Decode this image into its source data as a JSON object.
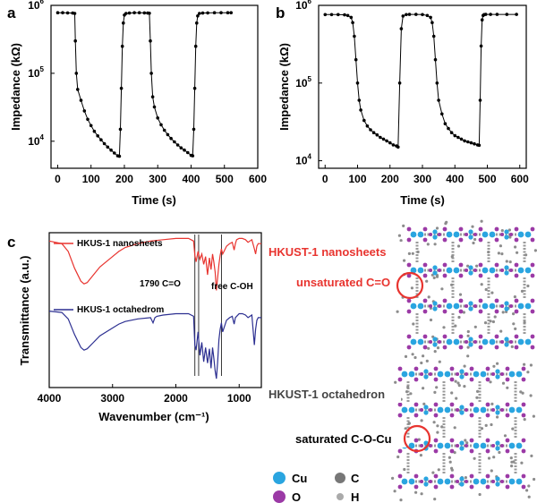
{
  "chart_data": [
    {
      "panel": "a",
      "type": "line",
      "xlabel": "Time (s)",
      "ylabel": "Impedance (kΩ)",
      "xlim": [
        -20,
        600
      ],
      "ylim": [
        4000,
        1000000
      ],
      "yscale": "log",
      "x_ticks": [
        "0",
        "100",
        "200",
        "300",
        "400",
        "500",
        "600"
      ],
      "y_ticks": [
        {
          "base": "10",
          "exp": "4"
        },
        {
          "base": "10",
          "exp": "5"
        },
        {
          "base": "10",
          "exp": "6"
        }
      ],
      "series": [
        {
          "color": "#000000",
          "x": [
            0,
            15,
            30,
            45,
            51,
            53,
            56,
            60,
            70,
            80,
            90,
            100,
            110,
            120,
            130,
            140,
            150,
            160,
            170,
            180,
            185,
            188,
            191,
            194,
            197,
            200,
            205,
            215,
            230,
            245,
            260,
            270,
            275,
            278,
            281,
            285,
            290,
            300,
            310,
            320,
            330,
            340,
            350,
            360,
            370,
            380,
            390,
            400,
            405,
            408,
            411,
            414,
            417,
            420,
            425,
            435,
            450,
            470,
            490,
            510,
            520
          ],
          "y": [
            780000,
            780000,
            775000,
            770000,
            760000,
            300000,
            100000,
            58000,
            40000,
            28000,
            21000,
            17000,
            14000,
            12000,
            10500,
            9200,
            8200,
            7400,
            6700,
            6100,
            6000,
            15000,
            60000,
            250000,
            550000,
            720000,
            760000,
            770000,
            780000,
            780000,
            775000,
            770000,
            765000,
            300000,
            100000,
            45000,
            32000,
            22000,
            17500,
            14500,
            12500,
            11000,
            9800,
            8800,
            8000,
            7400,
            6800,
            6200,
            6100,
            15000,
            60000,
            250000,
            550000,
            700000,
            760000,
            770000,
            775000,
            780000,
            780000,
            780000,
            780000
          ]
        }
      ]
    },
    {
      "panel": "b",
      "type": "line",
      "xlabel": "Time (s)",
      "ylabel": "Impedance (kΩ)",
      "xlim": [
        -20,
        620
      ],
      "ylim": [
        8000,
        1000000
      ],
      "yscale": "log",
      "x_ticks": [
        "0",
        "100",
        "200",
        "300",
        "400",
        "500",
        "600"
      ],
      "y_ticks": [
        {
          "base": "10",
          "exp": "4"
        },
        {
          "base": "10",
          "exp": "5"
        },
        {
          "base": "10",
          "exp": "6"
        }
      ],
      "series": [
        {
          "color": "#000000",
          "x": [
            0,
            20,
            40,
            60,
            70,
            80,
            85,
            90,
            95,
            100,
            105,
            110,
            120,
            130,
            140,
            150,
            160,
            170,
            180,
            190,
            200,
            210,
            220,
            225,
            230,
            235,
            240,
            250,
            260,
            280,
            300,
            315,
            325,
            330,
            335,
            340,
            345,
            350,
            360,
            370,
            380,
            390,
            400,
            410,
            420,
            430,
            440,
            450,
            460,
            470,
            475,
            478,
            481,
            484,
            487,
            490,
            495,
            510,
            530,
            560,
            590
          ],
          "y": [
            760000,
            760000,
            760000,
            755000,
            740000,
            700000,
            600000,
            400000,
            200000,
            100000,
            60000,
            45000,
            33000,
            28000,
            25000,
            23000,
            21500,
            20000,
            19000,
            18000,
            17000,
            16000,
            15500,
            15000,
            100000,
            500000,
            730000,
            760000,
            765000,
            765000,
            760000,
            740000,
            700000,
            600000,
            400000,
            200000,
            100000,
            60000,
            40000,
            30000,
            26000,
            23000,
            21000,
            20000,
            19000,
            18000,
            17500,
            17000,
            16500,
            16000,
            15800,
            60000,
            300000,
            650000,
            740000,
            760000,
            765000,
            765000,
            765000,
            765000,
            765000
          ]
        }
      ]
    },
    {
      "panel": "c",
      "type": "line",
      "xlabel": "Wavenumber (cm⁻¹)",
      "ylabel": "Transmittance (a.u.)",
      "xlim": [
        4000,
        650
      ],
      "x_reversed": true,
      "x_ticks": [
        "4000",
        "3000",
        "2000",
        "1000"
      ],
      "legend_position": "upper-left",
      "annotations": [
        "1790 C=O",
        "free C-OH"
      ],
      "marker_lines_x": [
        1700,
        1640,
        1280
      ],
      "series": [
        {
          "name": "HKUS-1 nanosheets",
          "color": "#e8342f",
          "x": [
            4000,
            3800,
            3700,
            3600,
            3500,
            3450,
            3400,
            3300,
            3200,
            3000,
            2900,
            2800,
            2600,
            2400,
            2200,
            2000,
            1900,
            1800,
            1720,
            1700,
            1680,
            1650,
            1620,
            1590,
            1560,
            1530,
            1500,
            1470,
            1445,
            1420,
            1400,
            1380,
            1360,
            1340,
            1320,
            1300,
            1280,
            1260,
            1240,
            1200,
            1150,
            1110,
            1080,
            1060,
            1040,
            1000,
            950,
            900,
            860,
            800,
            760,
            740,
            720,
            700,
            650
          ],
          "y": [
            0.88,
            0.86,
            0.8,
            0.67,
            0.57,
            0.55,
            0.56,
            0.62,
            0.68,
            0.76,
            0.8,
            0.83,
            0.86,
            0.88,
            0.89,
            0.9,
            0.9,
            0.9,
            0.88,
            0.77,
            0.72,
            0.8,
            0.74,
            0.78,
            0.7,
            0.76,
            0.62,
            0.75,
            0.66,
            0.78,
            0.72,
            0.64,
            0.5,
            0.6,
            0.7,
            0.77,
            0.82,
            0.78,
            0.8,
            0.84,
            0.86,
            0.87,
            0.81,
            0.86,
            0.89,
            0.9,
            0.9,
            0.89,
            0.87,
            0.89,
            0.82,
            0.78,
            0.84,
            0.86,
            0.86
          ]
        },
        {
          "name": "HKUS-1 octahedrom",
          "color": "#2c2f91",
          "x": [
            4000,
            3800,
            3700,
            3600,
            3500,
            3450,
            3400,
            3300,
            3200,
            3000,
            2900,
            2800,
            2600,
            2400,
            2360,
            2330,
            2300,
            2200,
            2000,
            1800,
            1720,
            1700,
            1680,
            1650,
            1620,
            1590,
            1560,
            1530,
            1500,
            1470,
            1445,
            1420,
            1400,
            1380,
            1360,
            1340,
            1320,
            1300,
            1280,
            1260,
            1200,
            1150,
            1110,
            1080,
            1060,
            1000,
            950,
            900,
            860,
            800,
            760,
            740,
            720,
            700,
            650
          ],
          "y": [
            0.34,
            0.33,
            0.28,
            0.16,
            0.06,
            0.04,
            0.05,
            0.1,
            0.15,
            0.21,
            0.24,
            0.26,
            0.28,
            0.29,
            0.25,
            0.29,
            0.3,
            0.31,
            0.32,
            0.32,
            0.3,
            0.08,
            0.04,
            0.18,
            0.0,
            0.1,
            -0.05,
            0.06,
            -0.06,
            0.05,
            -0.1,
            0.06,
            -0.02,
            -0.12,
            -0.18,
            -0.05,
            0.12,
            0.2,
            0.25,
            0.18,
            0.27,
            0.29,
            0.3,
            0.24,
            0.29,
            0.32,
            0.32,
            0.31,
            0.29,
            0.31,
            0.08,
            0.2,
            0.27,
            0.29,
            0.29
          ]
        }
      ]
    }
  ],
  "structures": {
    "top_title": "HKUST-1 nanosheets",
    "top_label": "unsaturated C=O",
    "top_title_color": "#e8342f",
    "bottom_title": "HKUST-1 octahedron",
    "bottom_label": "saturated C-O-Cu",
    "bottom_title_color": "#444444",
    "element_legend": [
      {
        "symbol": "Cu",
        "color": "#2aa5e0"
      },
      {
        "symbol": "C",
        "color": "#777777"
      },
      {
        "symbol": "O",
        "color": "#9b3aa6"
      },
      {
        "symbol": "H",
        "color": "#aaaaaa"
      }
    ]
  }
}
